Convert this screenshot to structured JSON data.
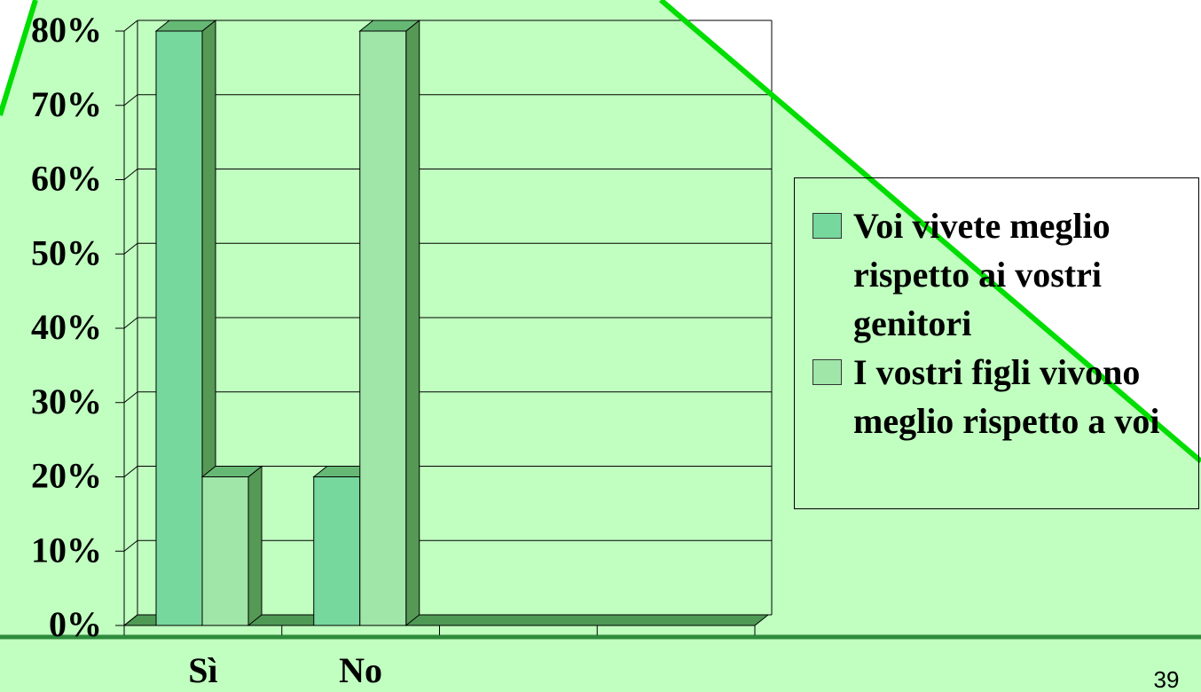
{
  "chart_data": {
    "type": "bar",
    "categories": [
      "Sì",
      "No",
      null,
      null
    ],
    "series": [
      {
        "name": "Voi vivete meglio rispetto ai vostri genitori",
        "color": "#77d89d",
        "values": [
          80,
          20,
          null,
          null
        ]
      },
      {
        "name": "I vostri figli vivono meglio rispetto a voi",
        "color": "#a0e6a8",
        "values": [
          20,
          80,
          null,
          null
        ]
      }
    ],
    "ylim": [
      0,
      80
    ],
    "yticks": [
      {
        "value": 0,
        "label": "0%"
      },
      {
        "value": 10,
        "label": "10%"
      },
      {
        "value": 20,
        "label": "20%"
      },
      {
        "value": 30,
        "label": "30%"
      },
      {
        "value": 40,
        "label": "40%"
      },
      {
        "value": 50,
        "label": "50%"
      },
      {
        "value": 60,
        "label": "60%"
      },
      {
        "value": 70,
        "label": "70%"
      },
      {
        "value": 80,
        "label": "80%"
      }
    ],
    "grid": true,
    "legend": "right"
  },
  "slide": {
    "page_number": "39"
  }
}
